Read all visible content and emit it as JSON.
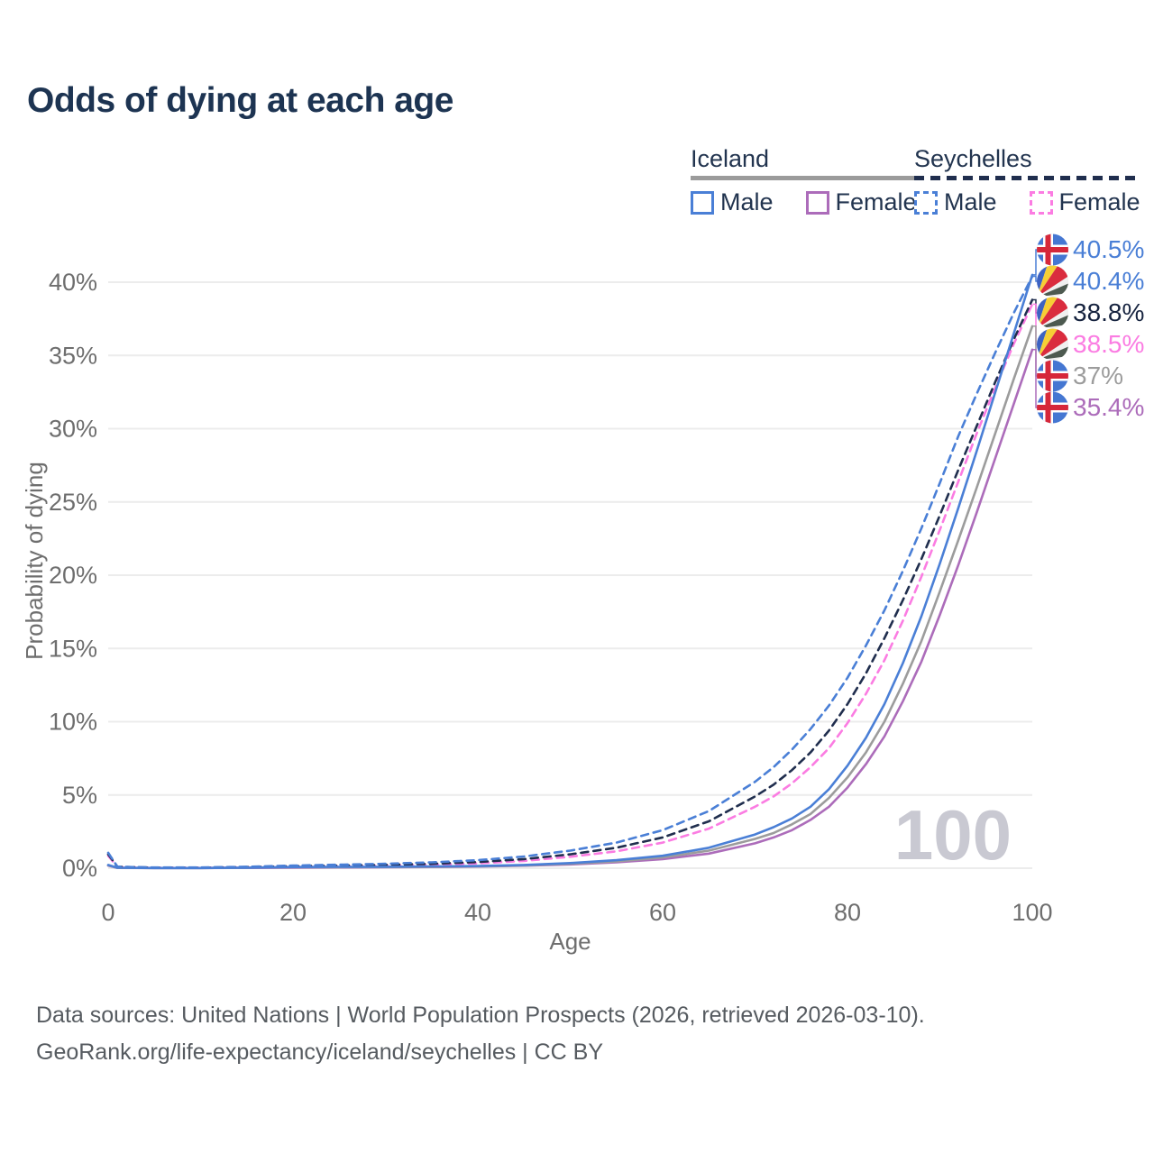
{
  "title": "Odds of dying at each age",
  "legend": {
    "groups": [
      {
        "country": "Iceland",
        "style": "solid",
        "underline_color": "#9b9b9b",
        "items": [
          {
            "label": "Male",
            "color": "#4a7fd6"
          },
          {
            "label": "Female",
            "color": "#ac6cba"
          }
        ]
      },
      {
        "country": "Seychelles",
        "style": "dashed",
        "underline_color": "#202e4e",
        "items": [
          {
            "label": "Male",
            "color": "#4a7fd6"
          },
          {
            "label": "Female",
            "color": "#fb7ce2"
          }
        ]
      }
    ]
  },
  "chart_data": {
    "type": "line",
    "title": "Odds of dying at each age",
    "xlabel": "Age",
    "ylabel": "Probability of dying",
    "xlim": [
      0,
      100
    ],
    "ylim": [
      0,
      42
    ],
    "grid": "horizontal",
    "grid_color": "#ececec",
    "tick_color": "#6e6e6e",
    "x_ticks": [
      0,
      20,
      40,
      60,
      80,
      100
    ],
    "y_ticks": [
      {
        "value": 0,
        "label": "0%"
      },
      {
        "value": 5,
        "label": "5%"
      },
      {
        "value": 10,
        "label": "10%"
      },
      {
        "value": 15,
        "label": "15%"
      },
      {
        "value": 20,
        "label": "20%"
      },
      {
        "value": 25,
        "label": "25%"
      },
      {
        "value": 30,
        "label": "30%"
      },
      {
        "value": 35,
        "label": "35%"
      },
      {
        "value": 40,
        "label": "40%"
      }
    ],
    "watermark": {
      "text": "100",
      "color": "#c9c9d2"
    },
    "ages": [
      0,
      1,
      5,
      10,
      15,
      20,
      25,
      30,
      35,
      40,
      45,
      50,
      55,
      60,
      65,
      70,
      72,
      74,
      76,
      78,
      80,
      82,
      84,
      86,
      88,
      90,
      92,
      94,
      96,
      98,
      100
    ],
    "series": [
      {
        "name": "Iceland Male",
        "country": "Iceland",
        "sex": "Male",
        "color": "#4a7fd6",
        "dash": false,
        "flag": "iceland",
        "end_label": {
          "text": "40.5%",
          "color": "#4a7fd6"
        },
        "values": [
          0.22,
          0.03,
          0.01,
          0.01,
          0.04,
          0.08,
          0.09,
          0.1,
          0.12,
          0.15,
          0.22,
          0.35,
          0.55,
          0.85,
          1.4,
          2.3,
          2.8,
          3.4,
          4.2,
          5.4,
          7.0,
          8.9,
          11.2,
          14.0,
          17.2,
          20.8,
          24.6,
          28.5,
          32.5,
          36.5,
          40.5
        ]
      },
      {
        "name": "Seychelles Male",
        "country": "Seychelles",
        "sex": "Male",
        "color": "#4a7fd6",
        "dash": true,
        "flag": "seychelles",
        "end_label": {
          "text": "40.4%",
          "color": "#4a7fd6"
        },
        "values": [
          1.05,
          0.1,
          0.05,
          0.05,
          0.1,
          0.18,
          0.24,
          0.3,
          0.4,
          0.55,
          0.8,
          1.2,
          1.75,
          2.6,
          3.9,
          5.9,
          6.9,
          8.1,
          9.5,
          11.1,
          13.0,
          15.2,
          17.6,
          20.3,
          23.2,
          26.3,
          29.5,
          32.4,
          35.2,
          37.9,
          40.4
        ]
      },
      {
        "name": "Seychelles Both sexes",
        "country": "Seychelles",
        "sex": "Both",
        "color": "#202e4e",
        "dash": true,
        "flag": "seychelles",
        "end_label": {
          "text": "38.8%",
          "color": "#16233f"
        },
        "values": [
          0.95,
          0.09,
          0.04,
          0.04,
          0.08,
          0.14,
          0.18,
          0.23,
          0.3,
          0.42,
          0.62,
          0.95,
          1.4,
          2.1,
          3.2,
          4.9,
          5.7,
          6.7,
          7.9,
          9.4,
          11.2,
          13.3,
          15.7,
          18.3,
          21.1,
          24.1,
          27.2,
          30.2,
          33.2,
          36.1,
          38.8
        ]
      },
      {
        "name": "Seychelles Female",
        "country": "Seychelles",
        "sex": "Female",
        "color": "#fb7ce2",
        "dash": true,
        "flag": "seychelles",
        "end_label": {
          "text": "38.5%",
          "color": "#fb7ce2"
        },
        "values": [
          0.85,
          0.08,
          0.035,
          0.035,
          0.06,
          0.1,
          0.13,
          0.17,
          0.23,
          0.33,
          0.5,
          0.78,
          1.15,
          1.75,
          2.7,
          4.2,
          4.9,
          5.8,
          6.9,
          8.2,
          9.9,
          11.9,
          14.2,
          16.9,
          19.9,
          23.1,
          26.4,
          29.7,
          32.8,
          35.8,
          38.5
        ]
      },
      {
        "name": "Iceland Both sexes",
        "country": "Iceland",
        "sex": "Both",
        "color": "#9c9c9c",
        "dash": false,
        "flag": "iceland",
        "end_label": {
          "text": "37%",
          "color": "#9c9c9c"
        },
        "values": [
          0.2,
          0.025,
          0.01,
          0.01,
          0.03,
          0.06,
          0.07,
          0.08,
          0.1,
          0.13,
          0.19,
          0.3,
          0.47,
          0.73,
          1.2,
          2.0,
          2.4,
          3.0,
          3.7,
          4.8,
          6.2,
          7.9,
          10.0,
          12.6,
          15.5,
          18.9,
          22.4,
          26.0,
          29.7,
          33.4,
          37.0
        ]
      },
      {
        "name": "Iceland Female",
        "country": "Iceland",
        "sex": "Female",
        "color": "#ac6cba",
        "dash": false,
        "flag": "iceland",
        "end_label": {
          "text": "35.4%",
          "color": "#ac6cba"
        },
        "values": [
          0.18,
          0.02,
          0.01,
          0.01,
          0.02,
          0.04,
          0.05,
          0.06,
          0.08,
          0.11,
          0.17,
          0.26,
          0.4,
          0.62,
          1.0,
          1.7,
          2.1,
          2.6,
          3.3,
          4.2,
          5.5,
          7.1,
          9.0,
          11.4,
          14.1,
          17.3,
          20.7,
          24.3,
          28.0,
          31.7,
          35.4
        ]
      }
    ]
  },
  "flag_colors": {
    "iceland": {
      "bg": "#4577d2",
      "cross_white": "#ffffff",
      "cross_red": "#d6273a"
    },
    "seychelles": {
      "blue": "#3d63c2",
      "yellow": "#f6cf35",
      "red": "#da2c3e",
      "white": "#f0f0f0",
      "green": "#4d5a50"
    }
  },
  "footer": {
    "line1": "Data sources: United Nations | World Population Prospects (2026, retrieved 2026-03-10).",
    "line2": "GeoRank.org/life-expectancy/iceland/seychelles | CC BY"
  }
}
